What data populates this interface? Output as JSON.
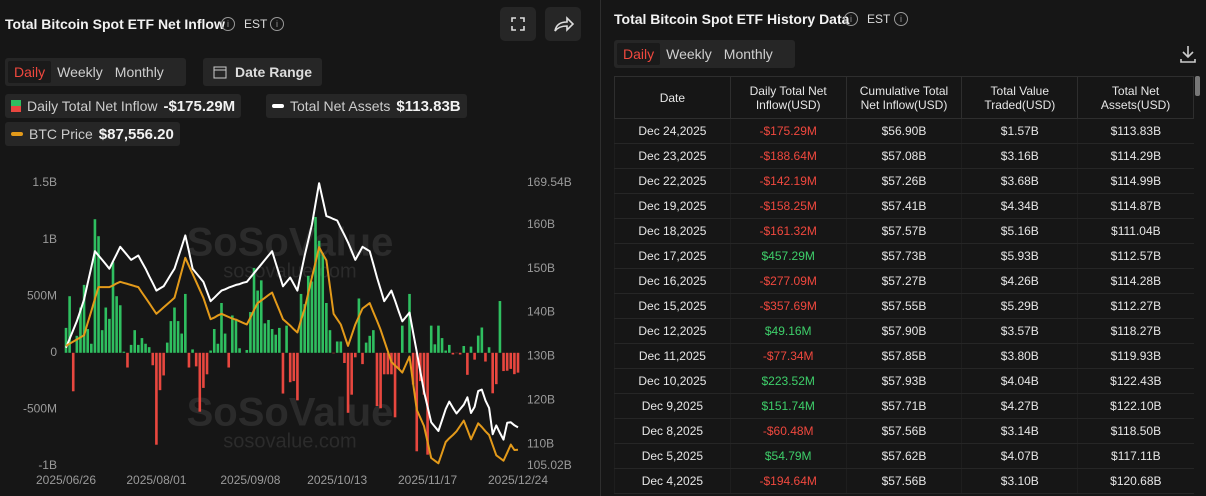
{
  "left_panel": {
    "title": "Total Bitcoin Spot ETF Net Inflow",
    "timezone": "EST",
    "tabs": [
      "Daily",
      "Weekly",
      "Monthly"
    ],
    "date_range": "Date Range"
  },
  "chart_data": {
    "type": "combo",
    "watermark": [
      "SoSoValue",
      "sosovalue.com"
    ],
    "categories": [
      "2025/06/26",
      null,
      null,
      null,
      null,
      null,
      null,
      null,
      null,
      null,
      null,
      null,
      null,
      null,
      null,
      null,
      null,
      null,
      null,
      null,
      null,
      null,
      null,
      null,
      null,
      "2025/08/01",
      null,
      null,
      null,
      null,
      null,
      null,
      null,
      null,
      null,
      null,
      null,
      null,
      null,
      null,
      null,
      null,
      null,
      null,
      null,
      null,
      null,
      null,
      null,
      null,
      null,
      "2025/09/08",
      null,
      null,
      null,
      null,
      null,
      null,
      null,
      null,
      null,
      null,
      null,
      null,
      null,
      null,
      null,
      null,
      null,
      null,
      null,
      null,
      null,
      null,
      null,
      "2025/10/13",
      null,
      null,
      null,
      null,
      null,
      null,
      null,
      null,
      null,
      null,
      null,
      null,
      null,
      null,
      null,
      null,
      null,
      null,
      null,
      null,
      null,
      null,
      null,
      null,
      "2025/11/17",
      null,
      null,
      null,
      null,
      null,
      null,
      null,
      null,
      null,
      null,
      null,
      null,
      null,
      null,
      null,
      null,
      null,
      null,
      null,
      null,
      null,
      null,
      null,
      null,
      "2025/12/24"
    ],
    "ylim": [
      -1000,
      1500
    ],
    "yticks": [
      {
        "value": -1000,
        "label": "-1B"
      },
      {
        "value": -500,
        "label": "-500M"
      },
      0,
      {
        "value": 500,
        "label": "500M"
      },
      {
        "value": 1000,
        "label": "1B"
      },
      {
        "value": 1500,
        "label": "1.5B"
      }
    ],
    "y2lim": [
      105.02,
      169.54
    ],
    "y2ticks": [
      {
        "value": 105.02,
        "label": "105.02B"
      },
      {
        "value": 110,
        "label": "110B"
      },
      {
        "value": 120,
        "label": "120B"
      },
      {
        "value": 130,
        "label": "130B"
      },
      {
        "value": 140,
        "label": "140B"
      },
      {
        "value": 150,
        "label": "150B"
      },
      {
        "value": 160,
        "label": "160B"
      },
      {
        "value": 169.54,
        "label": "169.54B"
      }
    ],
    "y3lim": [
      84500,
      137500
    ],
    "grid": false,
    "series": [
      {
        "name": "Daily Total Net Inflow",
        "type": "bar",
        "color": "#2fbf60",
        "negative_color": "#e8473f",
        "latest_label": "-$175.29M",
        "values": [
          220,
          500,
          -340,
          150,
          400,
          600,
          210,
          80,
          1180,
          1030,
          200,
          400,
          300,
          800,
          500,
          420,
          10,
          -130,
          70,
          200,
          70,
          130,
          80,
          50,
          -110,
          -812,
          -330,
          -200,
          90,
          280,
          400,
          280,
          170,
          520,
          -130,
          30,
          -120,
          -520,
          -310,
          -190,
          20,
          210,
          80,
          440,
          170,
          -130,
          330,
          300,
          40,
          0,
          25,
          360,
          750,
          550,
          640,
          260,
          290,
          210,
          160,
          220,
          -360,
          240,
          -260,
          -250,
          -420,
          520,
          430,
          680,
          630,
          1200,
          990,
          880,
          440,
          200,
          -4,
          100,
          100,
          -90,
          -530,
          -370,
          -40,
          480,
          -100,
          90,
          150,
          200,
          -470,
          -490,
          -190,
          -190,
          -190,
          -570,
          -140,
          240,
          1,
          520,
          -280,
          -870,
          -250,
          -370,
          -900,
          240,
          75,
          240,
          130,
          20,
          70,
          -15,
          -3,
          -15,
          60,
          -194.64,
          54.79,
          -60.48,
          151.74,
          223.52,
          -77.34,
          49.16,
          -357.69,
          -277.09,
          457.29,
          -161.32,
          -158.25,
          -142.19,
          -188.64,
          -175.29
        ]
      },
      {
        "name": "Total Net Assets",
        "type": "line",
        "axis": "y2",
        "color": "#ffffff",
        "latest_label": "$113.83B",
        "values": [
          132,
          134,
          136,
          138,
          140.5,
          143,
          146.7,
          150.3,
          154,
          153,
          152,
          151,
          150,
          151.7,
          153.3,
          155,
          154,
          153,
          152,
          152.5,
          153,
          151.5,
          150,
          148.3,
          146.7,
          145,
          145.5,
          146,
          147.3,
          148.7,
          150,
          152.5,
          155,
          157.6,
          154,
          150,
          149,
          148,
          147,
          144.8,
          142.6,
          143.4,
          144.2,
          145,
          145.3,
          145.7,
          146,
          146.3,
          146.5,
          146.8,
          147,
          148,
          149,
          150,
          151,
          152,
          153,
          154,
          151.3,
          148.7,
          146,
          147,
          148,
          146.5,
          145,
          149,
          153,
          156.5,
          160,
          164.8,
          169.5,
          165.8,
          162,
          161.7,
          161.3,
          161,
          159.3,
          157.7,
          156,
          154,
          152,
          153.5,
          155,
          154.5,
          154,
          151,
          148,
          145.3,
          142.6,
          143.8,
          145,
          142.7,
          140.3,
          138,
          139,
          140,
          135.5,
          131,
          126.5,
          122,
          118.5,
          115,
          114,
          113,
          115.5,
          118,
          119.7,
          118.3,
          117,
          118,
          119,
          120.68,
          117.11,
          118.5,
          122.1,
          122.43,
          119.93,
          118.27,
          112.27,
          114.28,
          112.57,
          111.04,
          114.87,
          114.99,
          114.29,
          113.83
        ]
      },
      {
        "name": "BTC Price",
        "type": "line",
        "axis": "y3",
        "color": "#e39a1a",
        "latest_label": "$87,556.20",
        "values": [
          107000,
          107400,
          107800,
          108200,
          108600,
          109000,
          111300,
          113500,
          115800,
          118000,
          118000,
          118000,
          118000,
          118300,
          118700,
          119000,
          118800,
          118600,
          118400,
          118200,
          118000,
          117000,
          116000,
          115000,
          114000,
          113000,
          113600,
          114200,
          114800,
          115400,
          116000,
          118500,
          121000,
          123500,
          122000,
          120500,
          119000,
          117500,
          116000,
          114000,
          112000,
          112300,
          112700,
          113000,
          112700,
          112400,
          112100,
          111900,
          111600,
          111300,
          111000,
          112300,
          113700,
          115000,
          115500,
          116000,
          116500,
          117000,
          115300,
          113700,
          112000,
          111400,
          110800,
          110100,
          109500,
          111800,
          114000,
          116900,
          119800,
          122600,
          125500,
          124200,
          123000,
          118000,
          113000,
          112000,
          111000,
          109000,
          107000,
          109000,
          111000,
          112500,
          114000,
          114500,
          115000,
          113300,
          111700,
          110000,
          108000,
          106000,
          104000,
          103300,
          102700,
          102000,
          103500,
          105000,
          100000,
          95000,
          93500,
          92000,
          89000,
          86000,
          85500,
          85000,
          87000,
          89000,
          89700,
          90300,
          91000,
          92000,
          93000,
          91300,
          89500,
          91000,
          92500,
          91800,
          91000,
          90300,
          88400,
          86500,
          86000,
          85500,
          87000,
          88500,
          87500,
          87556.2
        ]
      }
    ]
  },
  "right_panel": {
    "title": "Total Bitcoin Spot ETF History Data",
    "timezone": "EST",
    "tabs": [
      "Daily",
      "Weekly",
      "Monthly"
    ],
    "table": {
      "headers": [
        "Date",
        "Daily Total Net Inflow(USD)",
        "Cumulative Total Net Inflow(USD)",
        "Total Value Traded(USD)",
        "Total Net Assets(USD)"
      ],
      "rows": [
        [
          "Dec 24,2025",
          "-$175.29M",
          "$56.90B",
          "$1.57B",
          "$113.83B"
        ],
        [
          "Dec 23,2025",
          "-$188.64M",
          "$57.08B",
          "$3.16B",
          "$114.29B"
        ],
        [
          "Dec 22,2025",
          "-$142.19M",
          "$57.26B",
          "$3.68B",
          "$114.99B"
        ],
        [
          "Dec 19,2025",
          "-$158.25M",
          "$57.41B",
          "$4.34B",
          "$114.87B"
        ],
        [
          "Dec 18,2025",
          "-$161.32M",
          "$57.57B",
          "$5.16B",
          "$111.04B"
        ],
        [
          "Dec 17,2025",
          "$457.29M",
          "$57.73B",
          "$5.93B",
          "$112.57B"
        ],
        [
          "Dec 16,2025",
          "-$277.09M",
          "$57.27B",
          "$4.26B",
          "$114.28B"
        ],
        [
          "Dec 15,2025",
          "-$357.69M",
          "$57.55B",
          "$5.29B",
          "$112.27B"
        ],
        [
          "Dec 12,2025",
          "$49.16M",
          "$57.90B",
          "$3.57B",
          "$118.27B"
        ],
        [
          "Dec 11,2025",
          "-$77.34M",
          "$57.85B",
          "$3.80B",
          "$119.93B"
        ],
        [
          "Dec 10,2025",
          "$223.52M",
          "$57.93B",
          "$4.04B",
          "$122.43B"
        ],
        [
          "Dec 9,2025",
          "$151.74M",
          "$57.71B",
          "$4.27B",
          "$122.10B"
        ],
        [
          "Dec 8,2025",
          "-$60.48M",
          "$57.56B",
          "$3.14B",
          "$118.50B"
        ],
        [
          "Dec 5,2025",
          "$54.79M",
          "$57.62B",
          "$4.07B",
          "$117.11B"
        ],
        [
          "Dec 4,2025",
          "-$194.64M",
          "$57.56B",
          "$3.10B",
          "$120.68B"
        ]
      ]
    }
  }
}
